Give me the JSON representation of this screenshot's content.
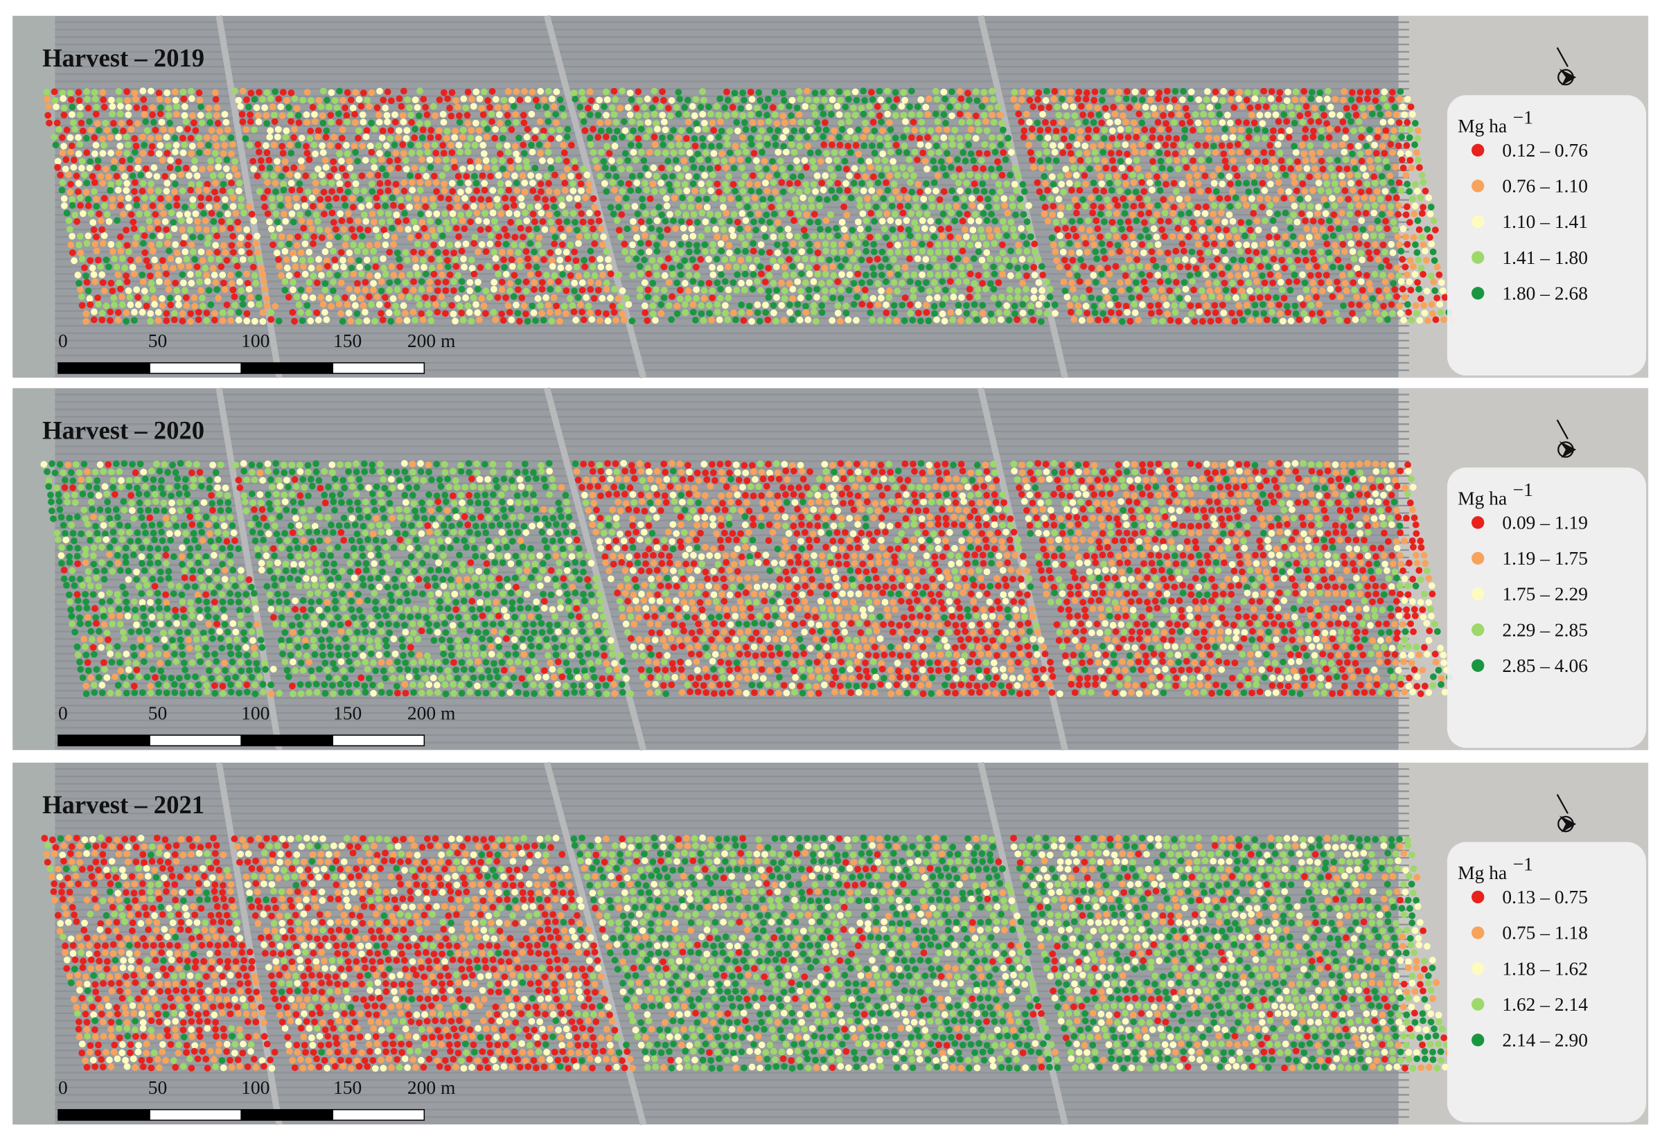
{
  "panels": [
    {
      "title": "Harvest – 2019",
      "legend": {
        "title": "Mg ha",
        "title_sup": "−1",
        "items": [
          {
            "label": "0.12 – 0.76",
            "color": "#e8211d"
          },
          {
            "label": "0.76 – 1.10",
            "color": "#f7a35c"
          },
          {
            "label": "1.10 – 1.41",
            "color": "#fdfcbf"
          },
          {
            "label": "1.41 – 1.80",
            "color": "#9dd86a"
          },
          {
            "label": "1.80 – 2.68",
            "color": "#1a9641"
          }
        ]
      },
      "scale_bar": [
        "0",
        "50",
        "100",
        "150",
        "200 m"
      ]
    },
    {
      "title": "Harvest – 2020",
      "legend": {
        "title": "Mg ha",
        "title_sup": "−1",
        "items": [
          {
            "label": "0.09 – 1.19",
            "color": "#e8211d"
          },
          {
            "label": "1.19 – 1.75",
            "color": "#f7a35c"
          },
          {
            "label": "1.75 – 2.29",
            "color": "#fdfcbf"
          },
          {
            "label": "2.29 – 2.85",
            "color": "#9dd86a"
          },
          {
            "label": "2.85 – 4.06",
            "color": "#1a9641"
          }
        ]
      },
      "scale_bar": [
        "0",
        "50",
        "100",
        "150",
        "200 m"
      ]
    },
    {
      "title": "Harvest – 2021",
      "legend": {
        "title": "Mg ha",
        "title_sup": "−1",
        "items": [
          {
            "label": "0.13 – 0.75",
            "color": "#e8211d"
          },
          {
            "label": "0.75 – 1.18",
            "color": "#f7a35c"
          },
          {
            "label": "1.18 – 1.62",
            "color": "#fdfcbf"
          },
          {
            "label": "1.62 – 2.14",
            "color": "#9dd86a"
          },
          {
            "label": "2.14 – 2.90",
            "color": "#1a9641"
          }
        ]
      },
      "scale_bar": [
        "0",
        "50",
        "100",
        "150",
        "200 m"
      ]
    }
  ]
}
